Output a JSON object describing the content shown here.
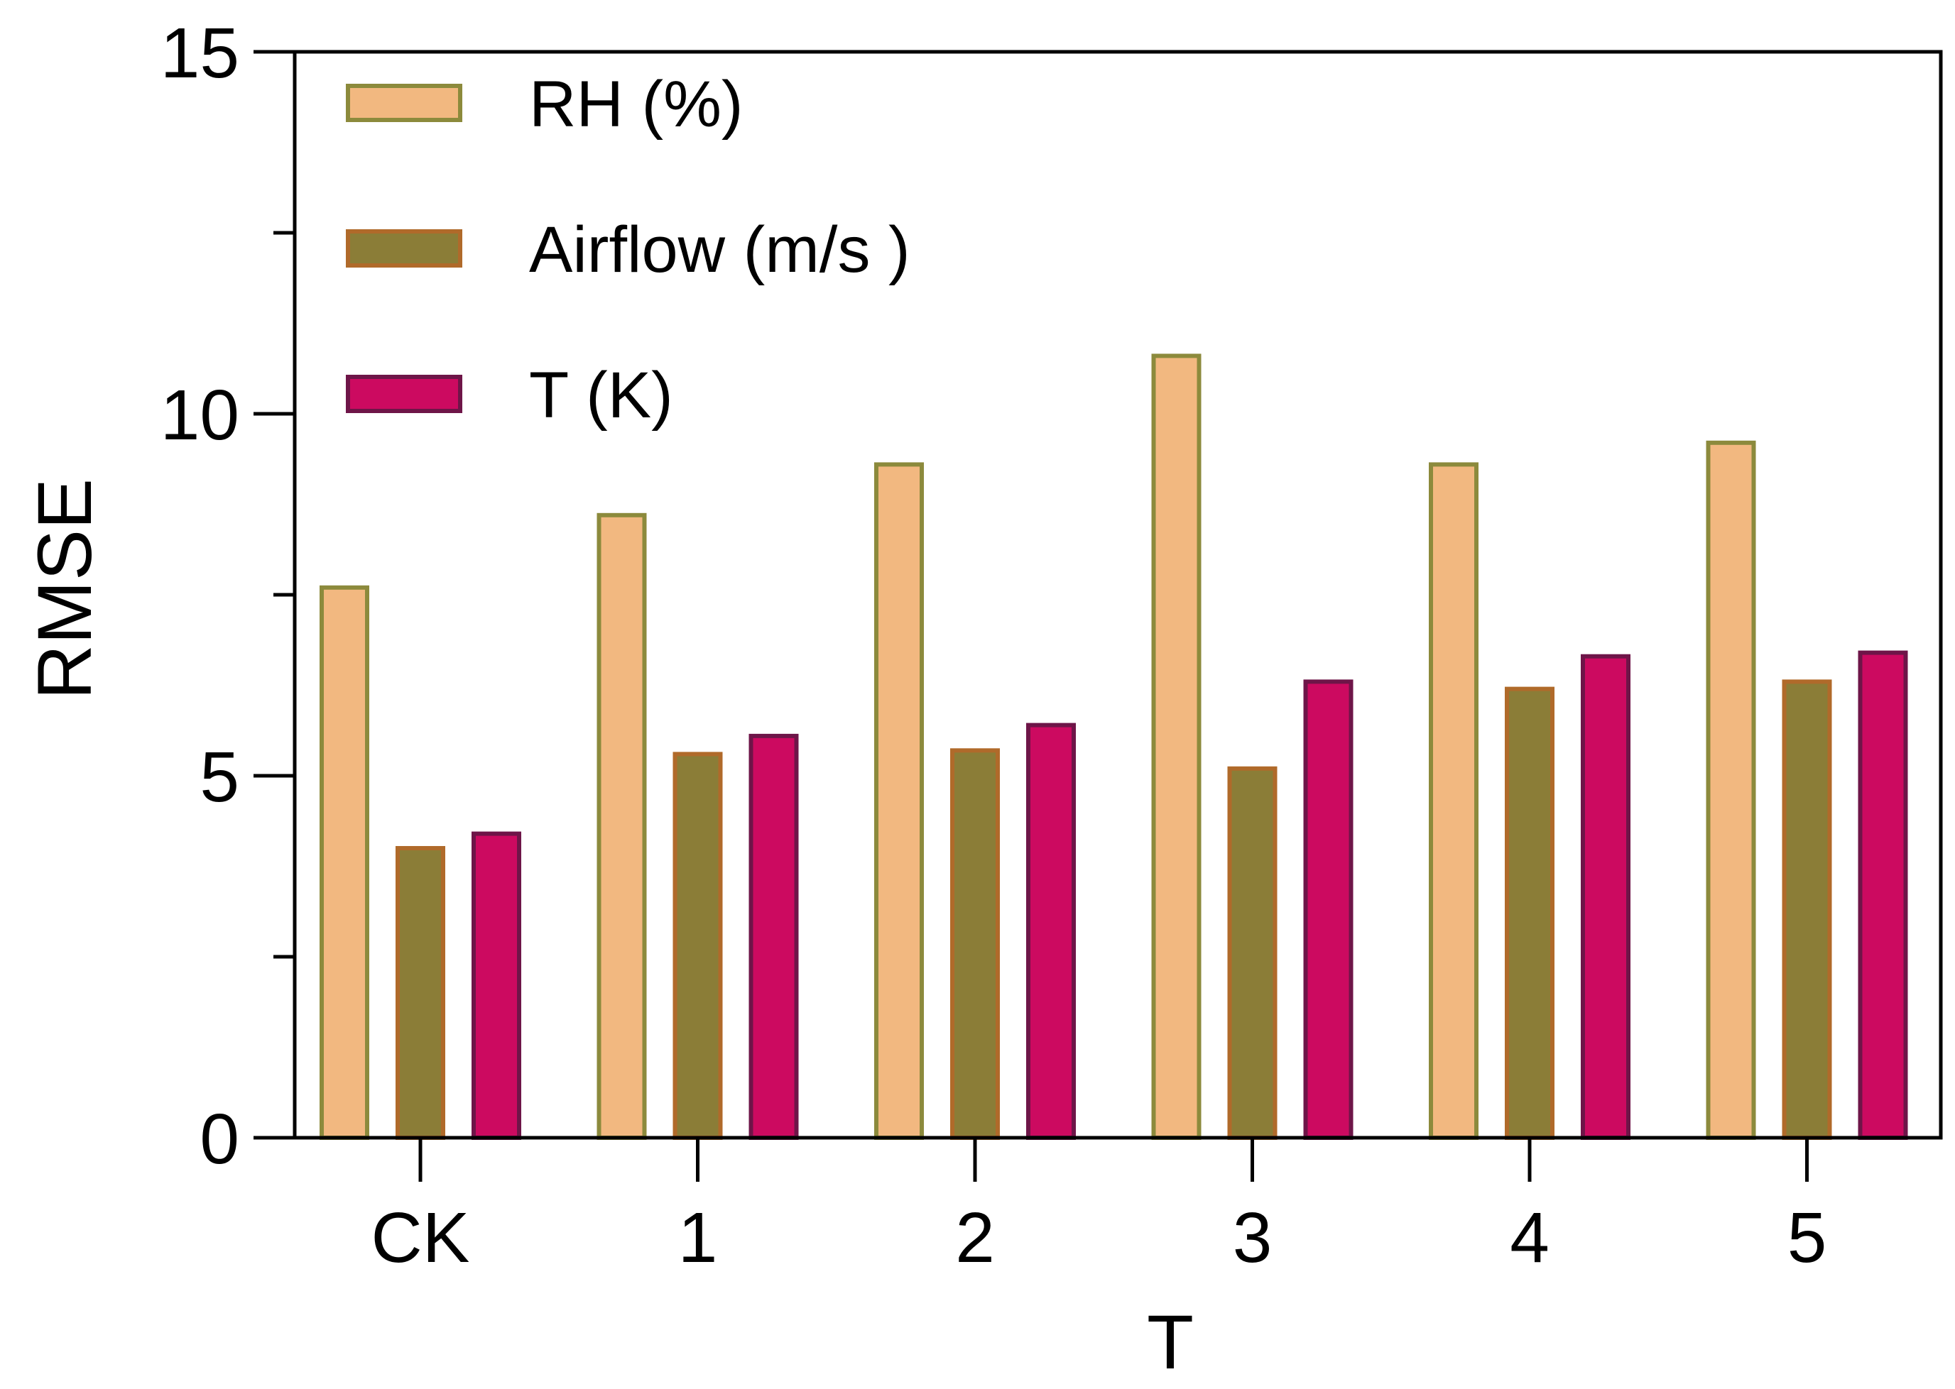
{
  "chart_data": {
    "type": "bar",
    "title": "",
    "xlabel": "T",
    "ylabel": "RMSE",
    "ylim": [
      0,
      15
    ],
    "yticks": [
      0,
      5,
      10,
      15
    ],
    "yminor": [
      2.5,
      7.5,
      12.5
    ],
    "grid": false,
    "legend_position": "top-left",
    "categories": [
      "CK",
      "1",
      "2",
      "3",
      "4",
      "5"
    ],
    "series": [
      {
        "name": "RH (%)",
        "fill": "#F2B880",
        "stroke": "#8C8A3C",
        "values": [
          7.6,
          8.6,
          9.3,
          10.8,
          9.3,
          9.6
        ]
      },
      {
        "name": "Airflow (m/s )",
        "fill": "#8B7D37",
        "stroke": "#B06A2A",
        "values": [
          4.0,
          5.3,
          5.35,
          5.1,
          6.2,
          6.3
        ]
      },
      {
        "name": "T (K)",
        "fill": "#CC0A60",
        "stroke": "#6E1548",
        "values": [
          4.2,
          5.55,
          5.7,
          6.3,
          6.65,
          6.7
        ]
      }
    ]
  }
}
